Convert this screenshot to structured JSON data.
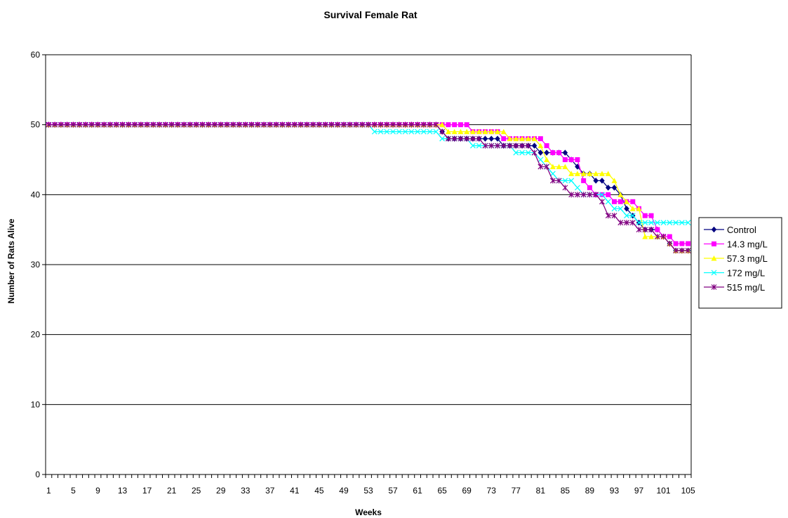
{
  "chart_data": {
    "type": "line",
    "title": "Survival Female Rat",
    "xlabel": "Weeks",
    "ylabel": "Number of Rats Alive",
    "x_range": [
      1,
      105
    ],
    "x_tick_labels": [
      "1",
      "5",
      "9",
      "13",
      "17",
      "21",
      "25",
      "29",
      "33",
      "37",
      "41",
      "45",
      "49",
      "53",
      "57",
      "61",
      "65",
      "69",
      "73",
      "77",
      "81",
      "85",
      "89",
      "93",
      "97",
      "101",
      "105"
    ],
    "ylim": [
      0,
      60
    ],
    "y_ticks": [
      0,
      10,
      20,
      30,
      40,
      50,
      60
    ],
    "grid": "horizontal",
    "legend_position": "right",
    "series": [
      {
        "name": "Control",
        "color": "#000080",
        "marker": "diamond",
        "points": [
          [
            1,
            50
          ],
          [
            64,
            50
          ],
          [
            65,
            49
          ],
          [
            66,
            48
          ],
          [
            74,
            48
          ],
          [
            75,
            47
          ],
          [
            80,
            47
          ],
          [
            81,
            46
          ],
          [
            85,
            46
          ],
          [
            86,
            45
          ],
          [
            87,
            44
          ],
          [
            88,
            43
          ],
          [
            89,
            43
          ],
          [
            90,
            42
          ],
          [
            91,
            42
          ],
          [
            92,
            41
          ],
          [
            93,
            41
          ],
          [
            94,
            40
          ],
          [
            95,
            38
          ],
          [
            96,
            37
          ],
          [
            97,
            36
          ],
          [
            98,
            35
          ],
          [
            100,
            35
          ],
          [
            101,
            34
          ],
          [
            102,
            33
          ],
          [
            103,
            32
          ],
          [
            105,
            32
          ]
        ]
      },
      {
        "name": "14.3 mg/L",
        "color": "#ff00ff",
        "marker": "square",
        "points": [
          [
            1,
            50
          ],
          [
            69,
            50
          ],
          [
            70,
            49
          ],
          [
            74,
            49
          ],
          [
            75,
            48
          ],
          [
            81,
            48
          ],
          [
            82,
            47
          ],
          [
            83,
            46
          ],
          [
            84,
            46
          ],
          [
            85,
            45
          ],
          [
            87,
            45
          ],
          [
            88,
            42
          ],
          [
            89,
            41
          ],
          [
            90,
            40
          ],
          [
            92,
            40
          ],
          [
            93,
            39
          ],
          [
            96,
            39
          ],
          [
            97,
            38
          ],
          [
            98,
            37
          ],
          [
            99,
            37
          ],
          [
            100,
            35
          ],
          [
            101,
            34
          ],
          [
            102,
            34
          ],
          [
            103,
            33
          ],
          [
            105,
            33
          ]
        ]
      },
      {
        "name": "57.3 mg/L",
        "color": "#ffff00",
        "marker": "triangle",
        "points": [
          [
            1,
            50
          ],
          [
            65,
            50
          ],
          [
            66,
            49
          ],
          [
            75,
            49
          ],
          [
            76,
            48
          ],
          [
            80,
            48
          ],
          [
            81,
            47
          ],
          [
            82,
            45
          ],
          [
            83,
            44
          ],
          [
            85,
            44
          ],
          [
            86,
            43
          ],
          [
            88,
            43
          ],
          [
            89,
            43
          ],
          [
            92,
            43
          ],
          [
            93,
            42
          ],
          [
            94,
            40
          ],
          [
            95,
            39
          ],
          [
            96,
            38
          ],
          [
            97,
            38
          ],
          [
            98,
            34
          ],
          [
            100,
            34
          ],
          [
            101,
            34
          ],
          [
            102,
            33
          ],
          [
            103,
            32
          ],
          [
            105,
            32
          ]
        ]
      },
      {
        "name": "172 mg/L",
        "color": "#00ffff",
        "marker": "x",
        "points": [
          [
            1,
            50
          ],
          [
            53,
            50
          ],
          [
            54,
            49
          ],
          [
            64,
            49
          ],
          [
            65,
            48
          ],
          [
            69,
            48
          ],
          [
            70,
            47
          ],
          [
            72,
            47
          ],
          [
            73,
            47
          ],
          [
            76,
            47
          ],
          [
            77,
            46
          ],
          [
            80,
            46
          ],
          [
            81,
            45
          ],
          [
            82,
            44
          ],
          [
            83,
            43
          ],
          [
            84,
            42
          ],
          [
            86,
            42
          ],
          [
            87,
            41
          ],
          [
            88,
            40
          ],
          [
            90,
            40
          ],
          [
            91,
            40
          ],
          [
            92,
            39
          ],
          [
            93,
            38
          ],
          [
            94,
            38
          ],
          [
            95,
            37
          ],
          [
            96,
            37
          ],
          [
            97,
            36
          ],
          [
            105,
            36
          ]
        ]
      },
      {
        "name": "515 mg/L",
        "color": "#800080",
        "marker": "star",
        "points": [
          [
            1,
            50
          ],
          [
            64,
            50
          ],
          [
            65,
            49
          ],
          [
            66,
            48
          ],
          [
            71,
            48
          ],
          [
            72,
            47
          ],
          [
            79,
            47
          ],
          [
            80,
            46
          ],
          [
            81,
            44
          ],
          [
            82,
            44
          ],
          [
            83,
            42
          ],
          [
            84,
            42
          ],
          [
            85,
            41
          ],
          [
            86,
            40
          ],
          [
            90,
            40
          ],
          [
            91,
            39
          ],
          [
            92,
            37
          ],
          [
            93,
            37
          ],
          [
            94,
            36
          ],
          [
            96,
            36
          ],
          [
            97,
            35
          ],
          [
            99,
            35
          ],
          [
            100,
            34
          ],
          [
            101,
            34
          ],
          [
            102,
            33
          ],
          [
            103,
            32
          ],
          [
            105,
            32
          ]
        ]
      }
    ]
  }
}
